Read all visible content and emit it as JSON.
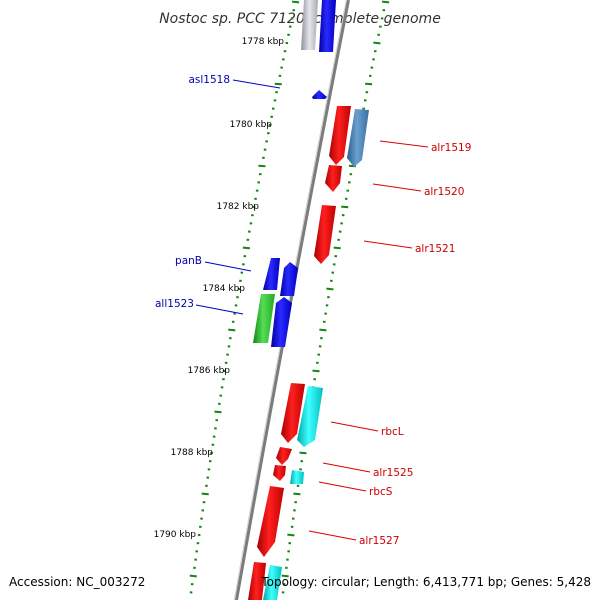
{
  "title": "Nostoc sp. PCC 7120, complete genome",
  "footer": {
    "accession": "Accession: NC_003272",
    "summary": "Topology: circular; Length: 6,413,771 bp; Genes: 5,428"
  },
  "colors": {
    "backbone": "#808080",
    "tick": "#118811",
    "forward_label": "#cc0000",
    "reverse_label": "#0000aa"
  },
  "kbp_labels": [
    "1778 kbp",
    "1780 kbp",
    "1782 kbp",
    "1784 kbp",
    "1786 kbp",
    "1788 kbp",
    "1790 kbp"
  ],
  "genes": [
    {
      "name": "asl1518",
      "strand": "reverse"
    },
    {
      "name": "alr1519",
      "strand": "forward"
    },
    {
      "name": "alr1520",
      "strand": "forward"
    },
    {
      "name": "alr1521",
      "strand": "forward"
    },
    {
      "name": "panB",
      "strand": "reverse"
    },
    {
      "name": "all1523",
      "strand": "reverse"
    },
    {
      "name": "rbcL",
      "strand": "forward"
    },
    {
      "name": "alr1525",
      "strand": "forward"
    },
    {
      "name": "rbcS",
      "strand": "forward"
    },
    {
      "name": "alr1527",
      "strand": "forward"
    }
  ]
}
